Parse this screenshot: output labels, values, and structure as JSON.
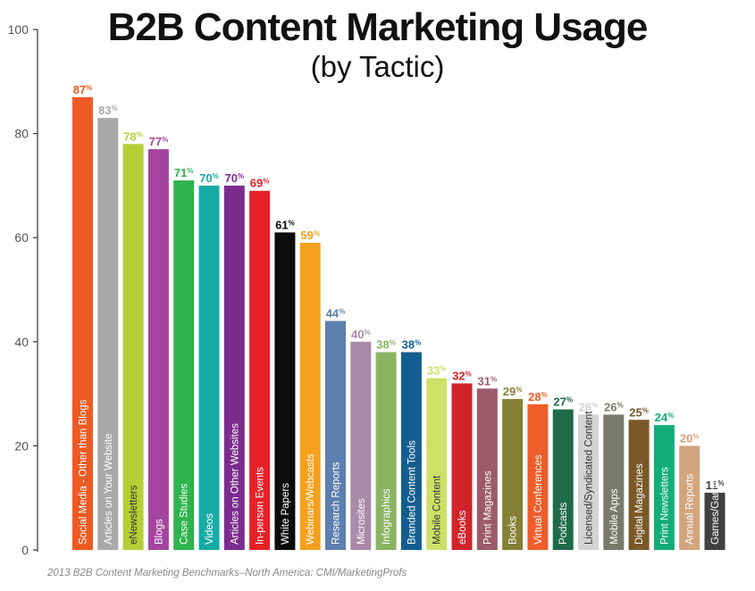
{
  "chart_data": {
    "type": "bar",
    "title": "B2B Content Marketing Usage",
    "subtitle": "(by Tactic)",
    "source": "2013 B2B Content Marketing Benchmarks–North America: CMI/MarketingProfs",
    "ylim": [
      0,
      100
    ],
    "yticks": [
      0,
      20,
      40,
      60,
      80,
      100
    ],
    "grid": false,
    "value_suffix": "%",
    "categories": [
      "Social Media - Other than Blogs",
      "Articles on Your Website",
      "eNewsletters",
      "Blogs",
      "Case Studies",
      "Videos",
      "Articles on Other Websites",
      "In-person Events",
      "White Papers",
      "Webinars/Webcasts",
      "Research Reports",
      "Microsites",
      "Infographics",
      "Branded Content Tools",
      "Mobile Content",
      "eBooks",
      "Print Magazines",
      "Books",
      "Virtual Conferences",
      "Podcasts",
      "Licensed/Syndicated Content",
      "Mobile Apps",
      "Digital Magazines",
      "Print Newsletters",
      "Annual Reports",
      "Games/Gamification"
    ],
    "values": [
      87,
      83,
      78,
      77,
      71,
      70,
      70,
      69,
      61,
      59,
      44,
      40,
      38,
      38,
      33,
      32,
      31,
      29,
      28,
      27,
      26,
      26,
      25,
      24,
      20,
      11
    ],
    "colors": [
      "#ee5a24",
      "#a9a9a9",
      "#b5cf35",
      "#a5449f",
      "#2eb34e",
      "#17aba6",
      "#7b2c8d",
      "#e82127",
      "#0c0c0c",
      "#f5a01c",
      "#5c7fae",
      "#a98aa9",
      "#8ab462",
      "#145e8f",
      "#cfe068",
      "#d1232a",
      "#9c5a6b",
      "#858036",
      "#ee5d2a",
      "#1f6b49",
      "#d3d3d3",
      "#7a7a6c",
      "#7a5828",
      "#13ad7a",
      "#d3a47e",
      "#404040"
    ]
  }
}
